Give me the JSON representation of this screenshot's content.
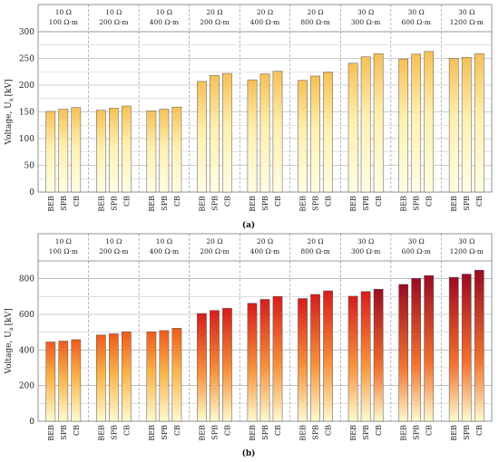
{
  "chart_data": [
    {
      "type": "bar",
      "panel_label": "(a)",
      "ylabel": "Voltage, U",
      "ylabel_sub": "a",
      "ylabel_unit": "[kV]",
      "ylim": [
        0,
        300
      ],
      "yticks": [
        0,
        50,
        100,
        150,
        200,
        250,
        300
      ],
      "groups": [
        {
          "line1": "10 Ω",
          "line2": "100 Ω·m"
        },
        {
          "line1": "10 Ω",
          "line2": "200 Ω·m"
        },
        {
          "line1": "10 Ω",
          "line2": "400 Ω·m"
        },
        {
          "line1": "20 Ω",
          "line2": "200 Ω·m"
        },
        {
          "line1": "20 Ω",
          "line2": "400 Ω·m"
        },
        {
          "line1": "20 Ω",
          "line2": "800 Ω·m"
        },
        {
          "line1": "30 Ω",
          "line2": "300 Ω·m"
        },
        {
          "line1": "30 Ω",
          "line2": "600 Ω·m"
        },
        {
          "line1": "30 Ω",
          "line2": "1200 Ω·m"
        }
      ],
      "categories": [
        "BEB",
        "SPB",
        "CB"
      ],
      "values": [
        [
          151,
          155,
          158
        ],
        [
          153,
          157,
          161
        ],
        [
          152,
          155,
          159
        ],
        [
          207,
          218,
          222
        ],
        [
          210,
          221,
          226
        ],
        [
          209,
          217,
          224
        ],
        [
          241,
          253,
          259
        ],
        [
          249,
          258,
          263
        ],
        [
          250,
          252,
          259
        ]
      ],
      "grid": true
    },
    {
      "type": "bar",
      "panel_label": "(b)",
      "ylabel": "Voltage, U",
      "ylabel_sub": "a",
      "ylabel_unit": "[kV]",
      "ylim": [
        0,
        900
      ],
      "yticks": [
        0,
        200,
        400,
        600,
        800
      ],
      "groups": [
        {
          "line1": "10 Ω",
          "line2": "100 Ω·m"
        },
        {
          "line1": "10 Ω",
          "line2": "200 Ω·m"
        },
        {
          "line1": "10 Ω",
          "line2": "400 Ω·m"
        },
        {
          "line1": "20 Ω",
          "line2": "200 Ω·m"
        },
        {
          "line1": "20 Ω",
          "line2": "400 Ω·m"
        },
        {
          "line1": "20 Ω",
          "line2": "800 Ω·m"
        },
        {
          "line1": "30 Ω",
          "line2": "300 Ω·m"
        },
        {
          "line1": "30 Ω",
          "line2": "600 Ω·m"
        },
        {
          "line1": "30 Ω",
          "line2": "1200 Ω·m"
        }
      ],
      "categories": [
        "BEB",
        "SPB",
        "CB"
      ],
      "values": [
        [
          445,
          450,
          458
        ],
        [
          484,
          491,
          502
        ],
        [
          502,
          509,
          522
        ],
        [
          605,
          622,
          634
        ],
        [
          662,
          684,
          701
        ],
        [
          689,
          712,
          732
        ],
        [
          702,
          728,
          741
        ],
        [
          768,
          802,
          818
        ],
        [
          808,
          826,
          848
        ]
      ],
      "grid": true
    }
  ]
}
